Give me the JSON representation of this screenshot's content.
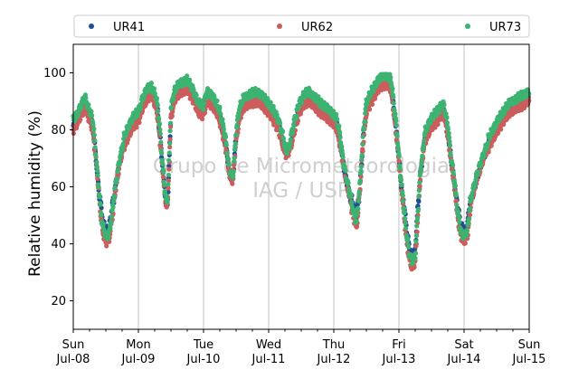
{
  "chart_data": {
    "type": "scatter",
    "ylabel": "Relative humidity (%)",
    "xlabel": "",
    "ylim": [
      10,
      110
    ],
    "y_ticks": [
      20,
      40,
      60,
      80,
      100
    ],
    "x_range_days": [
      0,
      7
    ],
    "x_ticks": [
      {
        "day": "Sun",
        "date": "Jul-08"
      },
      {
        "day": "Mon",
        "date": "Jul-09"
      },
      {
        "day": "Tue",
        "date": "Jul-10"
      },
      {
        "day": "Wed",
        "date": "Jul-11"
      },
      {
        "day": "Thu",
        "date": "Jul-12"
      },
      {
        "day": "Fri",
        "date": "Jul-13"
      },
      {
        "day": "Sat",
        "date": "Jul-14"
      },
      {
        "day": "Sun",
        "date": "Jul-15"
      }
    ],
    "grid": "vertical at day ticks",
    "legend": "top, above plot, 3 columns",
    "watermark": [
      "Grupo de Micrometeorologia",
      "IAG / USP"
    ],
    "series": [
      {
        "name": "UR41",
        "color": "#1f4e96"
      },
      {
        "name": "UR62",
        "color": "#cd5c5c"
      },
      {
        "name": "UR73",
        "color": "#3cb371"
      }
    ],
    "base_curve": {
      "x_unit": "days since Jul-08 00:00",
      "points": [
        [
          0.0,
          82
        ],
        [
          0.08,
          85
        ],
        [
          0.14,
          88
        ],
        [
          0.18,
          90
        ],
        [
          0.22,
          87
        ],
        [
          0.27,
          84
        ],
        [
          0.3,
          82
        ],
        [
          0.35,
          70
        ],
        [
          0.4,
          57
        ],
        [
          0.45,
          47
        ],
        [
          0.5,
          43
        ],
        [
          0.55,
          44
        ],
        [
          0.6,
          52
        ],
        [
          0.66,
          62
        ],
        [
          0.72,
          70
        ],
        [
          0.78,
          76
        ],
        [
          0.85,
          80
        ],
        [
          0.92,
          83
        ],
        [
          1.0,
          85
        ],
        [
          1.07,
          90
        ],
        [
          1.14,
          93
        ],
        [
          1.2,
          94
        ],
        [
          1.27,
          90
        ],
        [
          1.3,
          86
        ],
        [
          1.34,
          76
        ],
        [
          1.38,
          65
        ],
        [
          1.42,
          55
        ],
        [
          1.45,
          55
        ],
        [
          1.5,
          86
        ],
        [
          1.55,
          92
        ],
        [
          1.6,
          94
        ],
        [
          1.65,
          95
        ],
        [
          1.75,
          96
        ],
        [
          1.83,
          93
        ],
        [
          1.92,
          88
        ],
        [
          2.0,
          87
        ],
        [
          2.05,
          92
        ],
        [
          2.15,
          90
        ],
        [
          2.2,
          88
        ],
        [
          2.25,
          85
        ],
        [
          2.3,
          80
        ],
        [
          2.35,
          74
        ],
        [
          2.4,
          65
        ],
        [
          2.45,
          63
        ],
        [
          2.5,
          78
        ],
        [
          2.55,
          86
        ],
        [
          2.62,
          90
        ],
        [
          2.72,
          91
        ],
        [
          2.82,
          92
        ],
        [
          2.92,
          90
        ],
        [
          3.0,
          88
        ],
        [
          3.08,
          85
        ],
        [
          3.15,
          82
        ],
        [
          3.2,
          78
        ],
        [
          3.27,
          72
        ],
        [
          3.32,
          74
        ],
        [
          3.4,
          82
        ],
        [
          3.47,
          88
        ],
        [
          3.55,
          91
        ],
        [
          3.62,
          92
        ],
        [
          3.7,
          90
        ],
        [
          3.8,
          88
        ],
        [
          3.9,
          86
        ],
        [
          4.0,
          84
        ],
        [
          4.05,
          82
        ],
        [
          4.1,
          76
        ],
        [
          4.15,
          68
        ],
        [
          4.2,
          62
        ],
        [
          4.25,
          57
        ],
        [
          4.3,
          52
        ],
        [
          4.35,
          48
        ],
        [
          4.4,
          60
        ],
        [
          4.45,
          77
        ],
        [
          4.5,
          88
        ],
        [
          4.58,
          92
        ],
        [
          4.65,
          95
        ],
        [
          4.72,
          97
        ],
        [
          4.8,
          98
        ],
        [
          4.85,
          97
        ],
        [
          4.88,
          96
        ],
        [
          4.92,
          88
        ],
        [
          4.96,
          80
        ],
        [
          5.0,
          70
        ],
        [
          5.04,
          60
        ],
        [
          5.08,
          52
        ],
        [
          5.12,
          43
        ],
        [
          5.16,
          37
        ],
        [
          5.2,
          34
        ],
        [
          5.25,
          36
        ],
        [
          5.28,
          48
        ],
        [
          5.33,
          65
        ],
        [
          5.4,
          78
        ],
        [
          5.48,
          82
        ],
        [
          5.55,
          84
        ],
        [
          5.62,
          86
        ],
        [
          5.67,
          88
        ],
        [
          5.7,
          86
        ],
        [
          5.75,
          80
        ],
        [
          5.8,
          70
        ],
        [
          5.85,
          62
        ],
        [
          5.9,
          52
        ],
        [
          5.95,
          45
        ],
        [
          6.0,
          43
        ],
        [
          6.05,
          45
        ],
        [
          6.1,
          55
        ],
        [
          6.2,
          64
        ],
        [
          6.3,
          71
        ],
        [
          6.4,
          77
        ],
        [
          6.5,
          81
        ],
        [
          6.6,
          85
        ],
        [
          6.7,
          88
        ],
        [
          6.85,
          90
        ],
        [
          7.0,
          92
        ]
      ]
    }
  }
}
